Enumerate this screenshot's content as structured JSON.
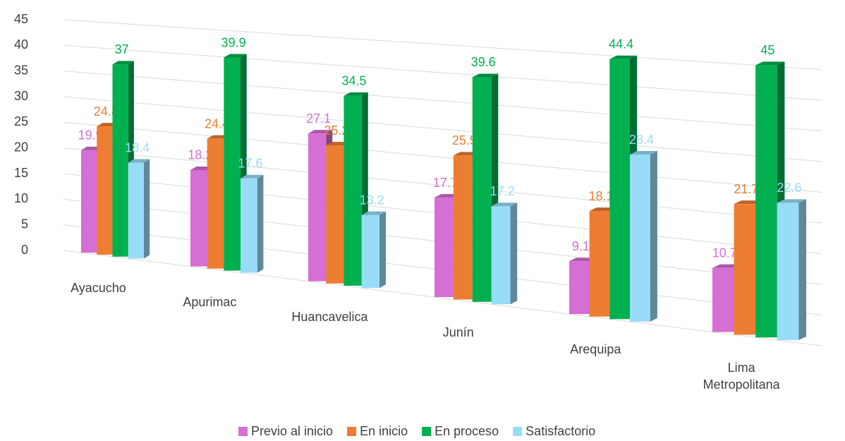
{
  "chart_data": {
    "type": "bar3d",
    "categories": [
      "Ayacucho",
      "Apurimac",
      "Huancavelica",
      "Junín",
      "Arequipa",
      "Lima Metropolitana"
    ],
    "series": [
      {
        "name": "Previo al inicio",
        "color": "#d56fd3",
        "values": [
          19.9,
          18.2,
          27.1,
          17.7,
          9.1,
          10.7
        ]
      },
      {
        "name": "En inicio",
        "color": "#ed7d31",
        "values": [
          24.8,
          24.4,
          25.2,
          25.5,
          18.1,
          21.7
        ]
      },
      {
        "name": "En proceso",
        "color": "#00b050",
        "values": [
          37,
          39.9,
          34.5,
          39.6,
          44.4,
          45
        ]
      },
      {
        "name": "Satisfactorio",
        "color": "#99dcf7",
        "values": [
          18.4,
          17.6,
          13.2,
          17.2,
          28.4,
          22.6
        ]
      }
    ],
    "ylim": [
      0,
      45
    ],
    "yticks": [
      0,
      5,
      10,
      15,
      20,
      25,
      30,
      35,
      40,
      45
    ],
    "grid": true,
    "legend": "bottom"
  }
}
